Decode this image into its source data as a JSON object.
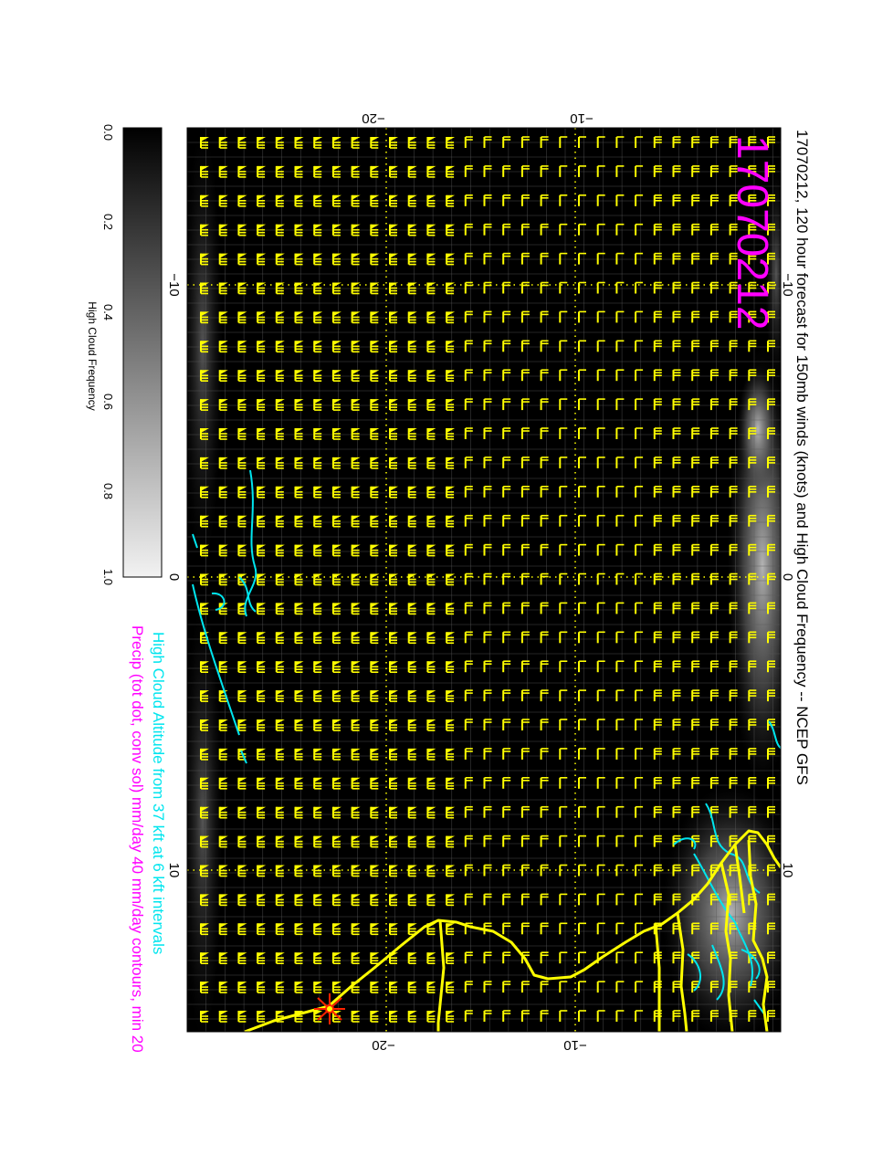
{
  "title": "17070212, 120 hour forecast for 150mb winds (knots) and High Cloud Frequency -- NCEP GFS",
  "date_stamp": "17070212",
  "legend_lines": {
    "cloud_altitude": "High Cloud Altitude from 37 kft at 6 kft intervals",
    "precip": "Precip (tot dot, conv sol) mm/day 40 mm/day contours, min 20"
  },
  "colorbar": {
    "label": "High Cloud Frequency",
    "ticks": [
      "0.0",
      "0.2",
      "0.4",
      "0.6",
      "0.8",
      "1.0"
    ]
  },
  "axes": {
    "top_ticks": [
      "−20",
      "−10"
    ],
    "bottom_ticks": [
      "−20",
      "−10"
    ],
    "left_ticks": [
      "−10",
      "0",
      "10"
    ],
    "right_ticks": [
      "−10",
      "0",
      "10"
    ]
  },
  "colors": {
    "background": "#000000",
    "wind_barbs": "#ffff00",
    "coastline": "#ffff00",
    "cloud_contours": "#00e5ee",
    "date_stamp": "#ff00ff",
    "legend_cloud": "#00e5ee",
    "legend_precip": "#ff00ff",
    "marker": "#ff2200"
  }
}
